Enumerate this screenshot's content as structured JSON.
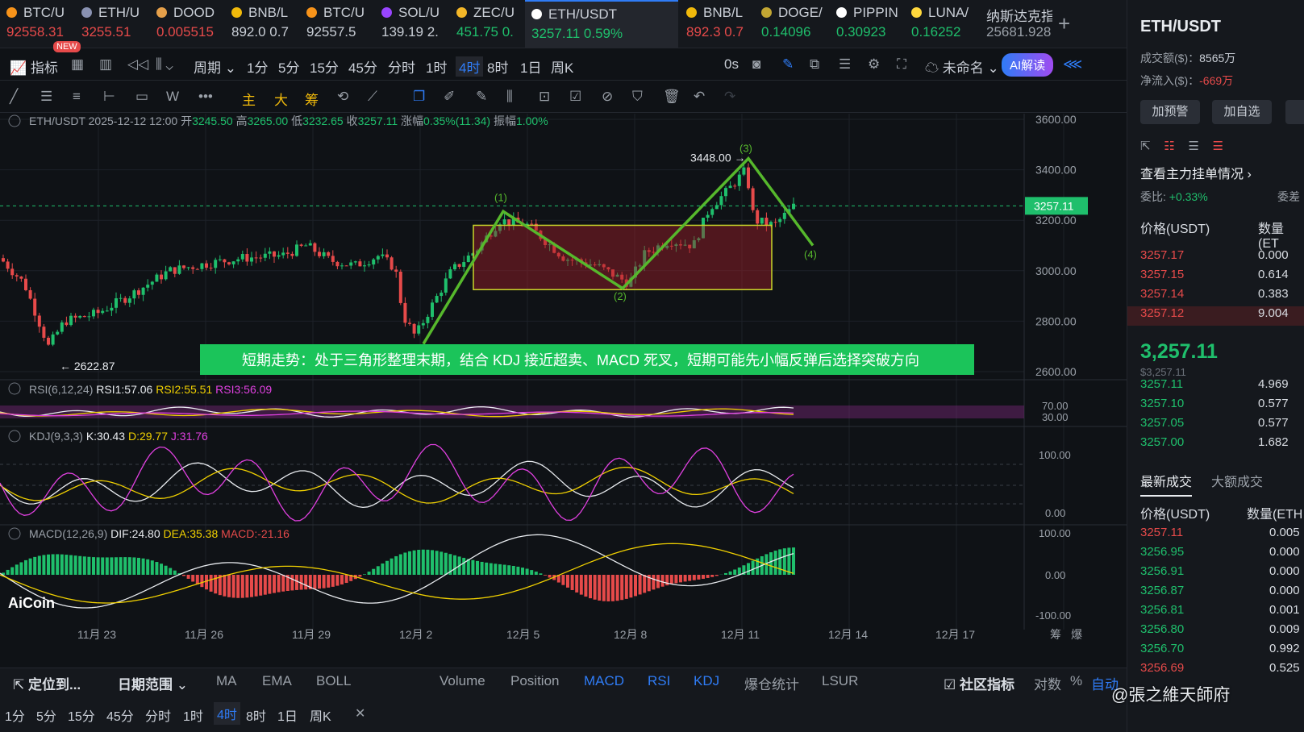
{
  "tabs": [
    {
      "name": "BTC/U",
      "price": "92558.31",
      "color": "#e64a4a",
      "icon": "#f7931a"
    },
    {
      "name": "ETH/U",
      "price": "3255.51",
      "color": "#e64a4a",
      "icon": "#8a92b2"
    },
    {
      "name": "DOOD",
      "price": "0.005515",
      "color": "#e64a4a",
      "icon": "#e6a04a"
    },
    {
      "name": "BNB/L",
      "price": "892.0 0.7",
      "color": "#c9ced6",
      "icon": "#f0b90b"
    },
    {
      "name": "BTC/U",
      "price": "92557.5",
      "color": "#c9ced6",
      "icon": "#f7931a"
    },
    {
      "name": "SOL/U",
      "price": "139.19 2.",
      "color": "#c9ced6",
      "icon": "#9945ff"
    },
    {
      "name": "ZEC/U",
      "price": "451.75 0.",
      "color": "#1fbf6c",
      "icon": "#f4b728"
    },
    {
      "name": "ETH/USDT",
      "price": "3257.11 0.59%",
      "color": "#1fbf6c",
      "icon": "#ffffff"
    },
    {
      "name": "BNB/L",
      "price": "892.3 0.7",
      "color": "#e64a4a",
      "icon": "#f0b90b"
    },
    {
      "name": "DOGE/",
      "price": "0.14096",
      "color": "#1fbf6c",
      "icon": "#c2a633"
    },
    {
      "name": "PIPPIN",
      "price": "0.30923",
      "color": "#1fbf6c",
      "icon": "#ffffff"
    },
    {
      "name": "LUNA/",
      "price": "0.16252",
      "color": "#1fbf6c",
      "icon": "#ffd83d"
    },
    {
      "name": "纳斯达克指",
      "price": "25681.928 (",
      "color": "#9aa0a8",
      "icon": ""
    }
  ],
  "new_badge": "NEW",
  "toolbar1": {
    "indicator": "指标",
    "period": "周期",
    "periods": [
      "1分",
      "5分",
      "15分",
      "45分",
      "分时",
      "1时",
      "4时",
      "8时",
      "1日",
      "周K"
    ],
    "active": "4时",
    "countdown": "0s",
    "unnamed": "未命名",
    "ai": "AI解读"
  },
  "toolbar2": {
    "main": "主",
    "big": "大",
    "chip": "筹"
  },
  "chart": {
    "symbol": "ETH/USDT",
    "datetime": "2025-12-12 12:00",
    "ohlc_label": {
      "o": "开",
      "h": "高",
      "l": "低",
      "c": "收",
      "chg": "涨幅",
      "amp": "振幅"
    },
    "open": "3245.50",
    "high": "3265.00",
    "low": "3232.65",
    "close": "3257.11",
    "change": "0.35%(11.34)",
    "amplitude": "1.00%",
    "y_ticks": [
      "3600.00",
      "3400.00",
      "3200.00",
      "3000.00",
      "2800.00",
      "2600.00"
    ],
    "last_price": "3257.11",
    "high_mark": "3448.00 →",
    "low_mark": "← 2622.87",
    "waves": [
      "(1)",
      "(2)",
      "(3)",
      "(4)"
    ],
    "note": "短期走势：处于三角形整理末期，结合 KDJ 接近超卖、MACD 死叉，短期可能先小幅反弹后选择突破方向",
    "rsi": {
      "label": "RSI(6,12,24)",
      "r1": "RSI1:57.06",
      "r2": "RSI2:55.51",
      "r3": "RSI3:56.09",
      "t1": "70.00",
      "t2": "30.00"
    },
    "kdj": {
      "label": "KDJ(9,3,3)",
      "k": "K:30.43",
      "d": "D:29.77",
      "j": "J:31.76",
      "t1": "100.00",
      "t2": "0.00"
    },
    "macd": {
      "label": "MACD(12,26,9)",
      "dif": "DIF:24.80",
      "dea": "DEA:35.38",
      "m": "MACD:-21.16",
      "t1": "100.00",
      "t2": "0.00",
      "t3": "-100.00"
    },
    "x_ticks": [
      "11月 23",
      "11月 26",
      "11月 29",
      "12月 2",
      "12月 5",
      "12月 8",
      "12月 11",
      "12月 14",
      "12月 17"
    ],
    "logo": "AiCoin",
    "corner": [
      "筹",
      "爆"
    ]
  },
  "right": {
    "title": "ETH/USDT",
    "turnover_label": "成交额($)：",
    "turnover": "8565万",
    "inflow_label": "净流入($)：",
    "inflow": "-669万",
    "btn_alert": "加预警",
    "btn_fav": "加自选",
    "orders_title": "查看主力挂单情况 ›",
    "ratio_label": "委比:",
    "ratio": "+0.33%",
    "ratio2": "委差",
    "col_price": "价格(USDT)",
    "col_qty": "数量(ET",
    "asks": [
      [
        "3257.17",
        "0.000"
      ],
      [
        "3257.15",
        "0.614"
      ],
      [
        "3257.14",
        "0.383"
      ],
      [
        "3257.12",
        "9.004"
      ]
    ],
    "mid_price": "3,257.11",
    "mid_sub": "$3,257.11",
    "bids": [
      [
        "3257.11",
        "4.969"
      ],
      [
        "3257.10",
        "0.577"
      ],
      [
        "3257.05",
        "0.577"
      ],
      [
        "3257.00",
        "1.682"
      ]
    ],
    "tab_latest": "最新成交",
    "tab_big": "大额成交",
    "col_price2": "价格(USDT)",
    "col_qty2": "数量(ETH",
    "trades": [
      [
        "3257.11",
        "0.005",
        "r"
      ],
      [
        "3256.95",
        "0.000",
        "g"
      ],
      [
        "3256.91",
        "0.000",
        "g"
      ],
      [
        "3256.87",
        "0.000",
        "g"
      ],
      [
        "3256.81",
        "0.001",
        "g"
      ],
      [
        "3256.80",
        "0.009",
        "g"
      ],
      [
        "3256.70",
        "0.992",
        "g"
      ],
      [
        "3256.69",
        "0.525",
        "r"
      ]
    ],
    "watermark": "@張之維天師府"
  },
  "bottom": {
    "locate": "定位到...",
    "range": "日期范围",
    "items": [
      "MA",
      "EMA",
      "BOLL"
    ],
    "inds": [
      "Volume",
      "Position",
      "MACD",
      "RSI",
      "KDJ",
      "爆仓统计",
      "LSUR"
    ],
    "community": "社区指标",
    "log": "对数",
    "pct": "%",
    "auto": "自动",
    "periods": [
      "1分",
      "5分",
      "15分",
      "45分",
      "分时",
      "1时",
      "4时",
      "8时",
      "1日",
      "周K"
    ],
    "active": "4时"
  }
}
